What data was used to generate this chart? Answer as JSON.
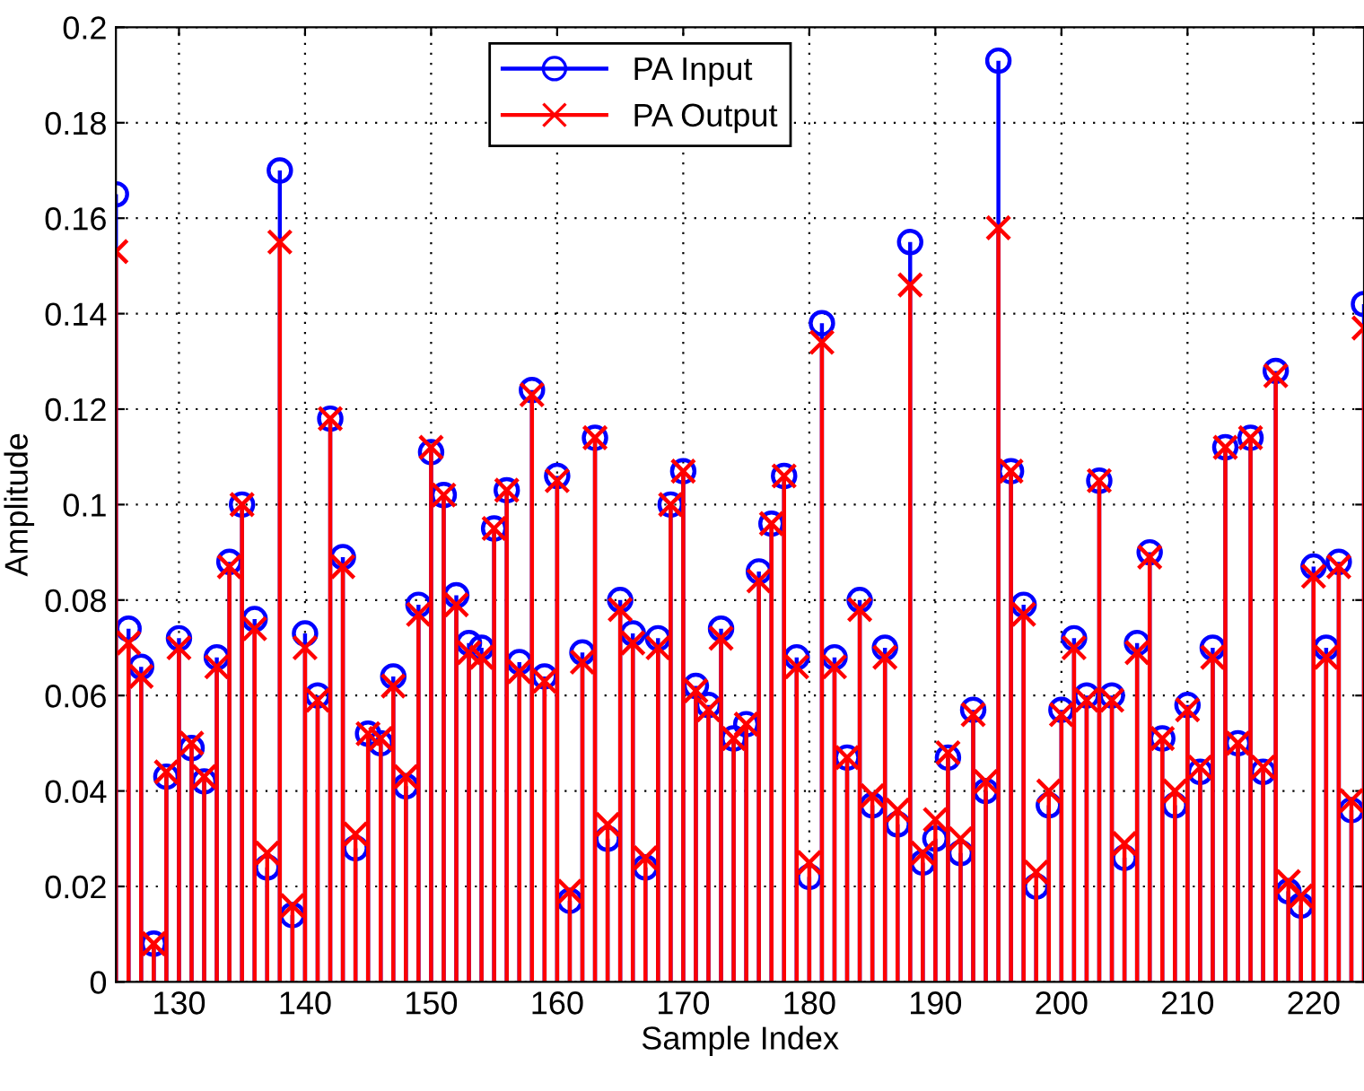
{
  "chart_data": {
    "type": "lollipop",
    "xlabel": "Sample Index",
    "ylabel": "Amplitude",
    "x": [
      125,
      126,
      127,
      128,
      129,
      130,
      131,
      132,
      133,
      134,
      135,
      136,
      137,
      138,
      139,
      140,
      141,
      142,
      143,
      144,
      145,
      146,
      147,
      148,
      149,
      150,
      151,
      152,
      153,
      154,
      155,
      156,
      157,
      158,
      159,
      160,
      161,
      162,
      163,
      164,
      165,
      166,
      167,
      168,
      169,
      170,
      171,
      172,
      173,
      174,
      175,
      176,
      177,
      178,
      179,
      180,
      181,
      182,
      183,
      184,
      185,
      186,
      187,
      188,
      189,
      190,
      191,
      192,
      193,
      194,
      195,
      196,
      197,
      198,
      199,
      200,
      201,
      202,
      203,
      204,
      205,
      206,
      207,
      208,
      209,
      210,
      211,
      212,
      213,
      214,
      215,
      216,
      217,
      218,
      219,
      220,
      221,
      222,
      223,
      224
    ],
    "series": [
      {
        "name": "PA Input",
        "color": "#0000ff",
        "marker": "circle",
        "values": [
          0.165,
          0.074,
          0.066,
          0.008,
          0.043,
          0.072,
          0.049,
          0.042,
          0.068,
          0.088,
          0.1,
          0.076,
          0.024,
          0.17,
          0.014,
          0.073,
          0.06,
          0.118,
          0.089,
          0.028,
          0.052,
          0.05,
          0.064,
          0.041,
          0.079,
          0.111,
          0.102,
          0.081,
          0.071,
          0.07,
          0.095,
          0.103,
          0.067,
          0.124,
          0.064,
          0.106,
          0.017,
          0.069,
          0.114,
          0.03,
          0.08,
          0.073,
          0.024,
          0.072,
          0.1,
          0.107,
          0.062,
          0.058,
          0.074,
          0.051,
          0.054,
          0.086,
          0.096,
          0.106,
          0.068,
          0.022,
          0.138,
          0.068,
          0.047,
          0.08,
          0.037,
          0.07,
          0.033,
          0.155,
          0.025,
          0.03,
          0.047,
          0.027,
          0.057,
          0.04,
          0.193,
          0.107,
          0.079,
          0.02,
          0.037,
          0.057,
          0.072,
          0.06,
          0.105,
          0.06,
          0.026,
          0.071,
          0.09,
          0.051,
          0.037,
          0.058,
          0.044,
          0.07,
          0.112,
          0.05,
          0.114,
          0.044,
          0.128,
          0.019,
          0.016,
          0.087,
          0.07,
          0.088,
          0.036,
          0.142
        ]
      },
      {
        "name": "PA Output",
        "color": "#ff0000",
        "marker": "cross",
        "values": [
          0.153,
          0.071,
          0.064,
          0.008,
          0.044,
          0.07,
          0.05,
          0.043,
          0.066,
          0.087,
          0.1,
          0.074,
          0.027,
          0.155,
          0.016,
          0.07,
          0.059,
          0.118,
          0.087,
          0.031,
          0.052,
          0.051,
          0.062,
          0.043,
          0.077,
          0.112,
          0.102,
          0.079,
          0.069,
          0.068,
          0.095,
          0.103,
          0.065,
          0.123,
          0.063,
          0.105,
          0.019,
          0.067,
          0.114,
          0.033,
          0.078,
          0.071,
          0.026,
          0.07,
          0.1,
          0.107,
          0.061,
          0.057,
          0.072,
          0.051,
          0.054,
          0.084,
          0.096,
          0.106,
          0.066,
          0.025,
          0.134,
          0.066,
          0.047,
          0.078,
          0.039,
          0.068,
          0.036,
          0.146,
          0.027,
          0.034,
          0.048,
          0.03,
          0.056,
          0.042,
          0.158,
          0.107,
          0.077,
          0.023,
          0.04,
          0.056,
          0.07,
          0.059,
          0.105,
          0.059,
          0.029,
          0.069,
          0.089,
          0.051,
          0.04,
          0.057,
          0.045,
          0.068,
          0.112,
          0.05,
          0.114,
          0.045,
          0.127,
          0.021,
          0.018,
          0.085,
          0.068,
          0.087,
          0.038,
          0.137
        ]
      }
    ],
    "xlim": [
      125,
      224
    ],
    "ylim": [
      0,
      0.2
    ],
    "xticks": [
      130,
      140,
      150,
      160,
      170,
      180,
      190,
      200,
      210,
      220
    ],
    "yticks": [
      0,
      0.02,
      0.04,
      0.06,
      0.08,
      0.1,
      0.12,
      0.14,
      0.16,
      0.18,
      0.2
    ],
    "grid": true,
    "legend": "top",
    "line_style": "solid"
  }
}
